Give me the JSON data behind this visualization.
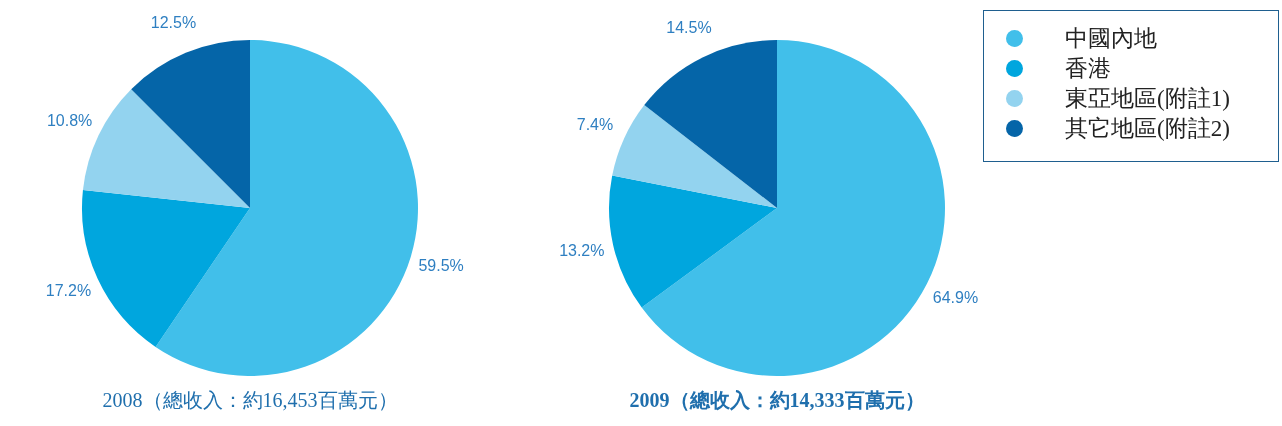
{
  "chart_data": [
    {
      "type": "pie",
      "title": "2008（總收入：約16,453百萬元）",
      "categories": [
        null,
        null,
        null,
        null
      ],
      "values": [
        59.5,
        17.2,
        10.8,
        12.5
      ],
      "colors": [
        "#41bfea",
        "#00a6de",
        "#93d3ef",
        "#0565a8"
      ],
      "value_labels": [
        "59.5%",
        "17.2%",
        "10.8%",
        "12.5%"
      ],
      "legend": false
    },
    {
      "type": "pie",
      "title": "2009（總收入：約14,333百萬元）",
      "categories": [
        "中國內地",
        "香港",
        "東亞地區(附註1)",
        "其它地區(附註2)"
      ],
      "values": [
        64.9,
        13.2,
        7.4,
        14.5
      ],
      "colors": [
        "#41bfea",
        "#00a6de",
        "#93d3ef",
        "#0565a8"
      ],
      "value_labels": [
        "64.9%",
        "13.2%",
        "7.4%",
        "14.5%"
      ],
      "legend": "right"
    }
  ]
}
